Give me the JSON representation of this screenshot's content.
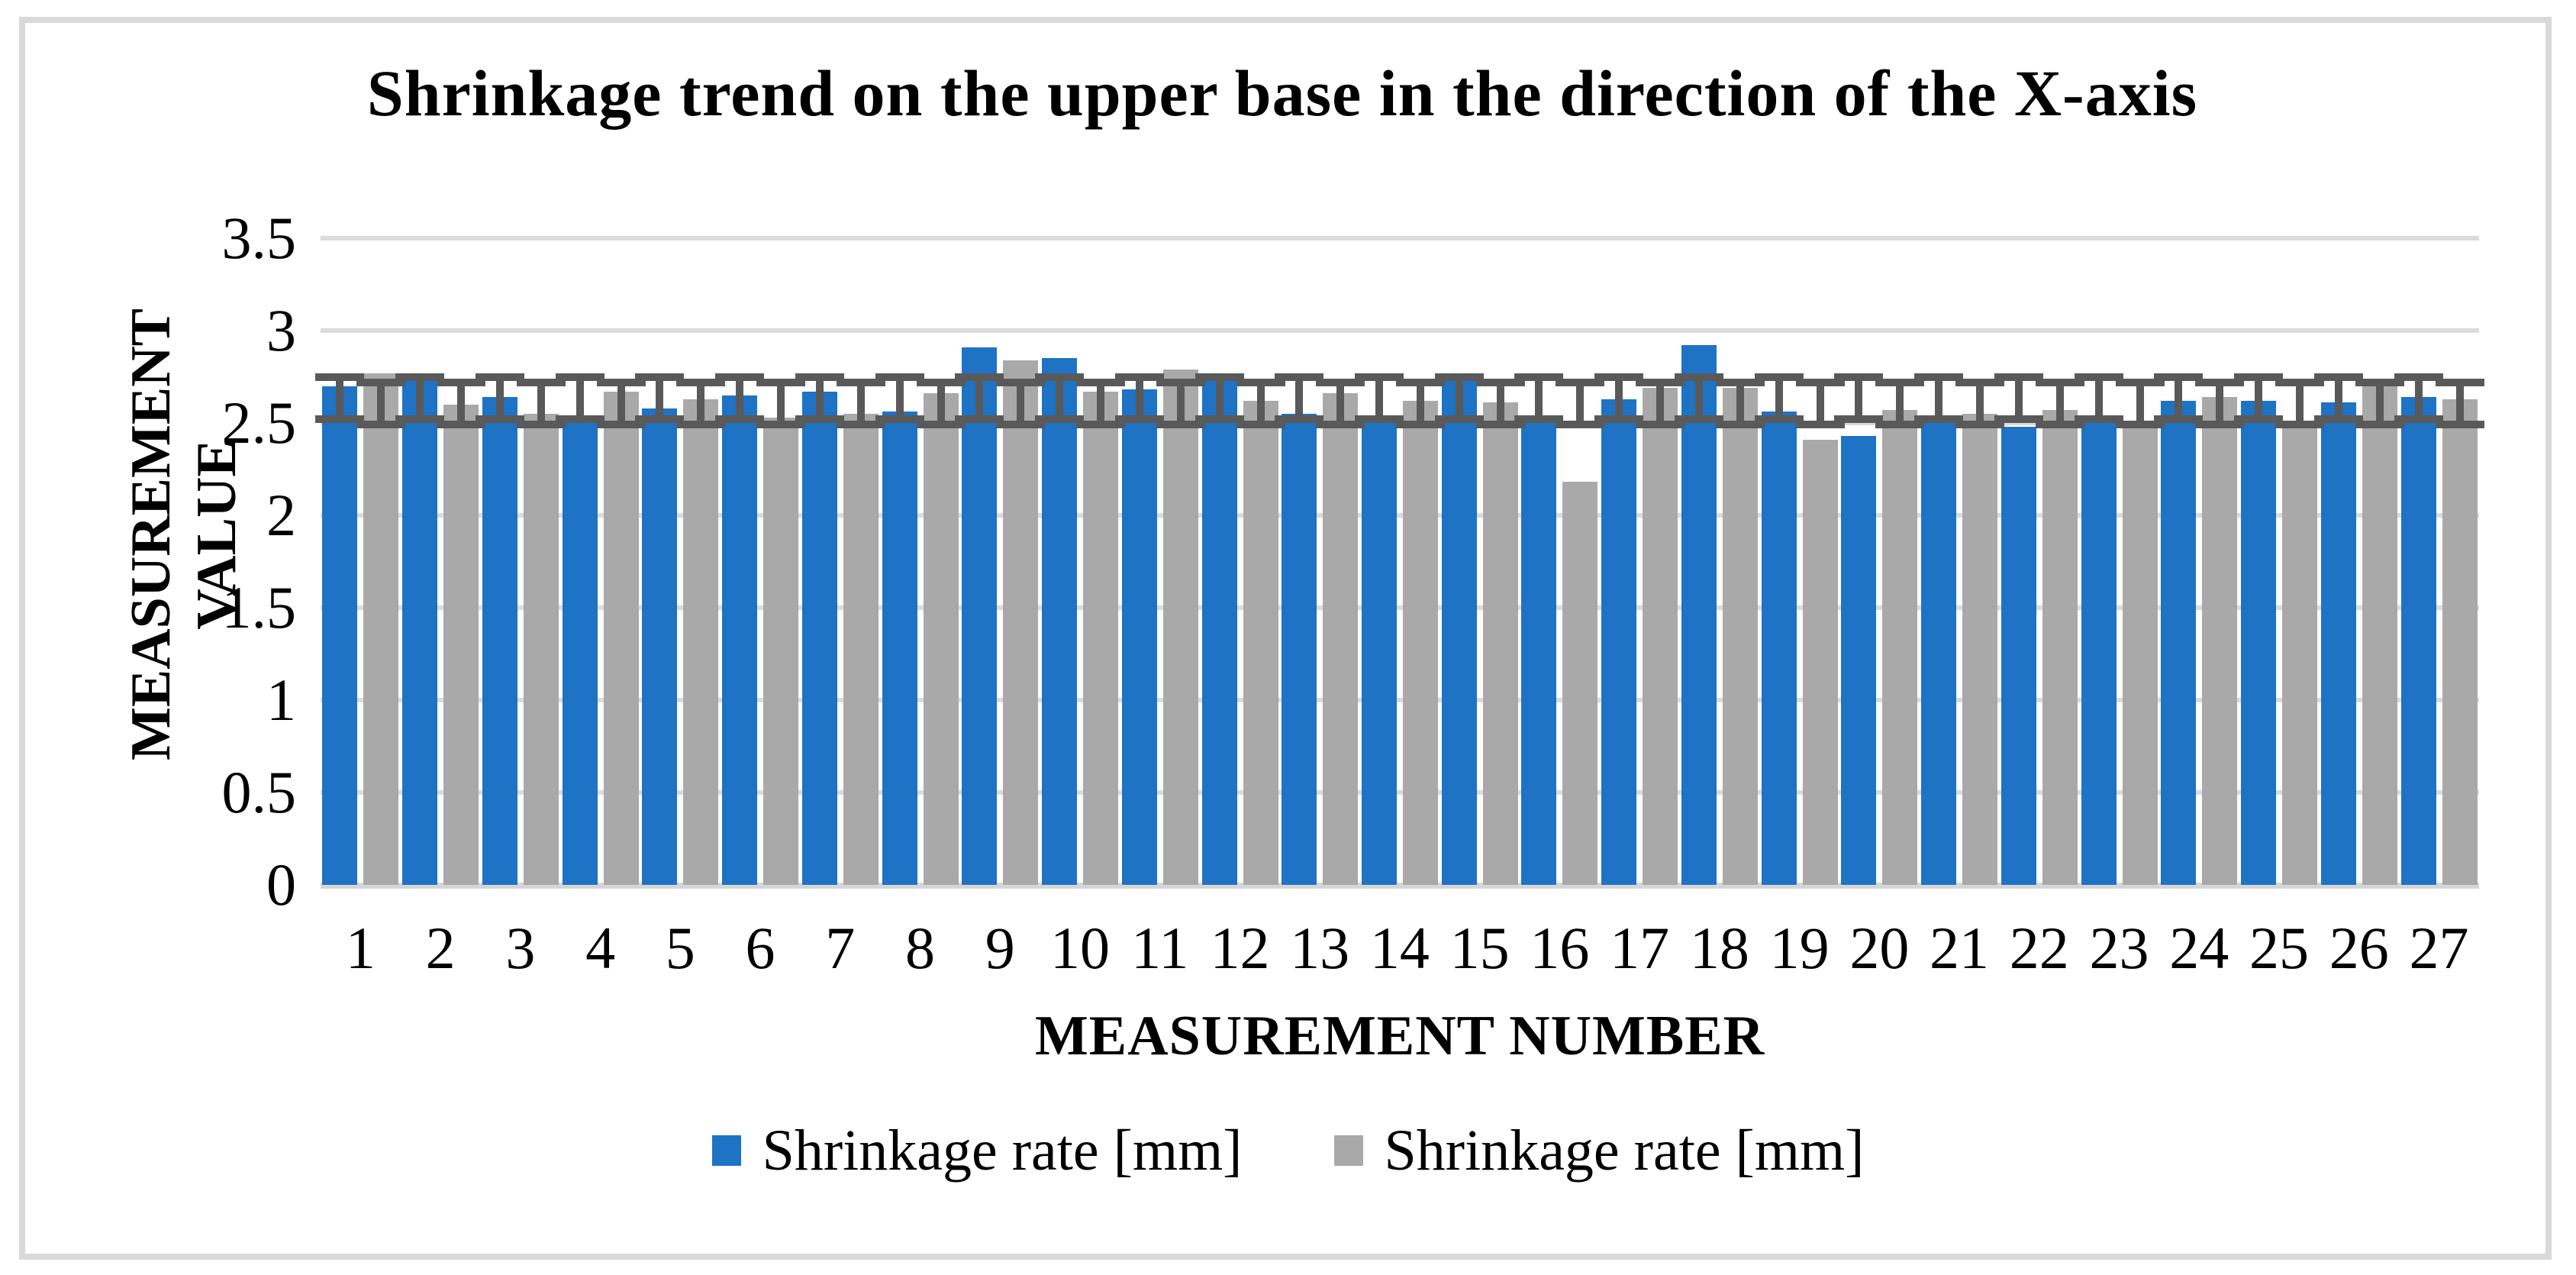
{
  "title": "Shrinkage trend on the upper base in the direction of the X-axis",
  "x_axis": {
    "title": "MEASUREMENT NUMBER"
  },
  "y_axis": {
    "title_line1": "MEASUREMENT",
    "title_line2": "VALUE"
  },
  "colors": {
    "series_blue": "#1e73c4",
    "series_gray": "#a9a9a9",
    "error_bar": "#595959",
    "gridline": "#dbdbde",
    "frame": "#d9d9d9",
    "background": "#ffffff",
    "text": "#000000"
  },
  "chart_data": {
    "type": "bar",
    "title": "Shrinkage trend on the upper base in the direction of the X-axis",
    "xlabel": "MEASUREMENT NUMBER",
    "ylabel": "MEASUREMENT VALUE",
    "ylim": [
      0,
      3.5
    ],
    "ytick_step": 0.5,
    "ytick_labels": [
      "3.5",
      "3",
      "2.5",
      "2",
      "1.5",
      "1",
      "0.5",
      "0"
    ],
    "grid": true,
    "legend_position": "bottom",
    "categories": [
      "1",
      "2",
      "3",
      "4",
      "5",
      "6",
      "7",
      "8",
      "9",
      "10",
      "11",
      "12",
      "13",
      "14",
      "15",
      "16",
      "17",
      "18",
      "19",
      "20",
      "21",
      "22",
      "23",
      "24",
      "25",
      "26",
      "27"
    ],
    "series": [
      {
        "name": "Shrinkage rate [mm]",
        "color": "#1e73c4",
        "values": [
          2.7,
          2.74,
          2.64,
          2.51,
          2.58,
          2.65,
          2.67,
          2.56,
          2.91,
          2.85,
          2.68,
          2.74,
          2.55,
          2.53,
          2.74,
          2.5,
          2.63,
          2.92,
          2.56,
          2.43,
          2.51,
          2.48,
          2.52,
          2.62,
          2.62,
          2.61,
          2.64
        ],
        "error_bar": {
          "low": 2.5,
          "high": 2.77
        }
      },
      {
        "name": "Shrinkage rate [mm]",
        "color": "#a9a9a9",
        "values": [
          2.77,
          2.6,
          2.55,
          2.67,
          2.63,
          2.53,
          2.55,
          2.66,
          2.84,
          2.67,
          2.79,
          2.62,
          2.66,
          2.62,
          2.61,
          2.18,
          2.69,
          2.69,
          2.41,
          2.57,
          2.55,
          2.57,
          2.5,
          2.64,
          2.51,
          2.71,
          2.63
        ],
        "error_bar": {
          "low": 2.47,
          "high": 2.74
        }
      }
    ]
  }
}
